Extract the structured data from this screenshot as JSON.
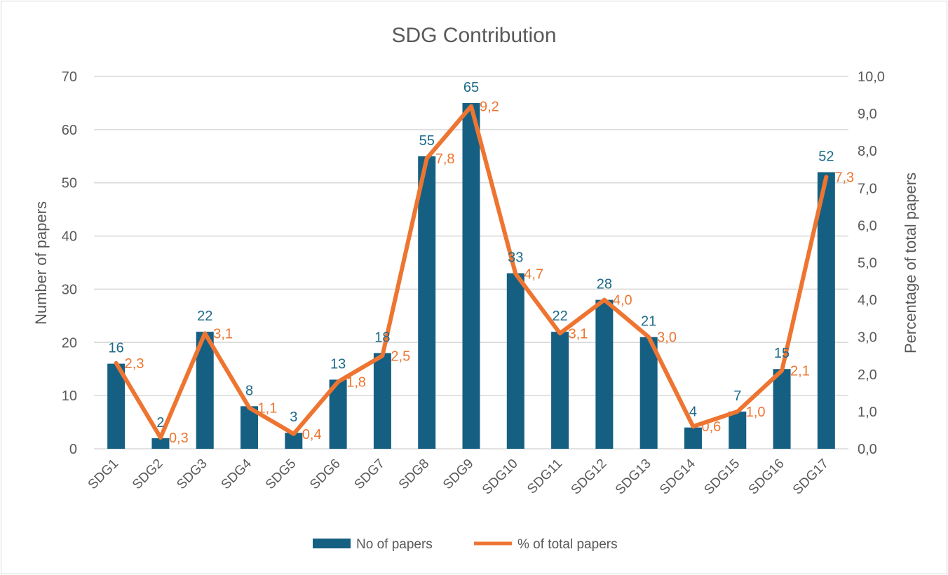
{
  "chart_data": {
    "type": "bar",
    "title": "SDG Contribution",
    "categories": [
      "SDG1",
      "SDG2",
      "SDG3",
      "SDG4",
      "SDG5",
      "SDG6",
      "SDG7",
      "SDG8",
      "SDG9",
      "SDG10",
      "SDG11",
      "SDG12",
      "SDG13",
      "SDG14",
      "SDG15",
      "SDG16",
      "SDG17"
    ],
    "series": [
      {
        "name": "No of papers",
        "type": "bar",
        "axis": "left",
        "color": "#156082",
        "values": [
          16,
          2,
          22,
          8,
          3,
          13,
          18,
          55,
          65,
          33,
          22,
          28,
          21,
          4,
          7,
          15,
          52
        ],
        "labels": [
          "16",
          "2",
          "22",
          "8",
          "3",
          "13",
          "18",
          "55",
          "65",
          "33",
          "22",
          "28",
          "21",
          "4",
          "7",
          "15",
          "52"
        ]
      },
      {
        "name": "% of total papers",
        "type": "line",
        "axis": "right",
        "color": "#ee7531",
        "values": [
          2.3,
          0.3,
          3.1,
          1.1,
          0.4,
          1.8,
          2.5,
          7.8,
          9.2,
          4.7,
          3.1,
          4.0,
          3.0,
          0.6,
          1.0,
          2.1,
          7.3
        ],
        "labels": [
          "2,3",
          "0,3",
          "3,1",
          "1,1",
          "0,4",
          "1,8",
          "2,5",
          "7,8",
          "9,2",
          "4,7",
          "3,1",
          "4,0",
          "3,0",
          "0,6",
          "1,0",
          "2,1",
          "7,3"
        ]
      }
    ],
    "ylabel": "Number of papers",
    "y2label": "Percentage of total papers",
    "ylim": [
      0,
      70
    ],
    "y2lim": [
      0,
      10
    ],
    "yticks": [
      0,
      10,
      20,
      30,
      40,
      50,
      60,
      70
    ],
    "yticklabels": [
      "0",
      "10",
      "20",
      "30",
      "40",
      "50",
      "60",
      "70"
    ],
    "y2ticks": [
      0,
      1,
      2,
      3,
      4,
      5,
      6,
      7,
      8,
      9,
      10
    ],
    "y2ticklabels": [
      "0,0",
      "1,0",
      "2,0",
      "3,0",
      "4,0",
      "5,0",
      "6,0",
      "7,0",
      "8,0",
      "9,0",
      "10,0"
    ],
    "grid": true,
    "legend": "bottom",
    "gridColor": "#d9d9d9"
  }
}
